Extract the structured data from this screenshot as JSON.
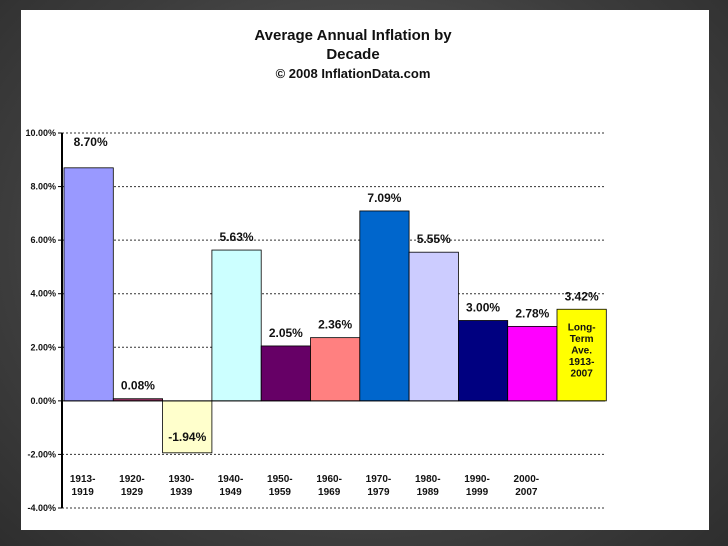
{
  "chart_data": {
    "type": "bar",
    "title": "Average Annual Inflation by Decade",
    "title_lines": [
      "Average Annual Inflation by",
      "Decade"
    ],
    "subtitle": "© 2008 InflationData.com",
    "xlabel": "",
    "ylabel": "",
    "ylim": [
      -4,
      10
    ],
    "y_ticks": [
      10,
      8,
      6,
      4,
      2,
      0,
      -2,
      -4
    ],
    "y_tick_labels": [
      "10.00%",
      "8.00%",
      "6.00%",
      "4.00%",
      "2.00%",
      "0.00%",
      "-2.00%",
      "-4.00%"
    ],
    "grid": true,
    "categories": [
      [
        "1913-",
        "1919"
      ],
      [
        "1920-",
        "1929"
      ],
      [
        "1930-",
        "1939"
      ],
      [
        "1940-",
        "1949"
      ],
      [
        "1950-",
        "1959"
      ],
      [
        "1960-",
        "1969"
      ],
      [
        "1970-",
        "1979"
      ],
      [
        "1980-",
        "1989"
      ],
      [
        "1990-",
        "1999"
      ],
      [
        "2000-",
        "2007"
      ],
      [
        "",
        ""
      ]
    ],
    "values": [
      8.7,
      0.08,
      -1.94,
      5.63,
      2.05,
      2.36,
      7.09,
      5.55,
      3.0,
      2.78,
      3.42
    ],
    "value_labels": [
      "8.70%",
      "0.08%",
      "-1.94%",
      "5.63%",
      "2.05%",
      "2.36%",
      "7.09%",
      "5.55%",
      "3.00%",
      "2.78%",
      "3.42%"
    ],
    "colors": [
      "#9999ff",
      "#993366",
      "#ffffcc",
      "#ccffff",
      "#660066",
      "#ff8080",
      "#0066cc",
      "#ccccff",
      "#000080",
      "#ff00ff",
      "#ffff00"
    ],
    "annotations": [
      {
        "bar_index": 10,
        "lines": [
          "Long-",
          "Term",
          "Ave.",
          "1913-",
          "2007"
        ]
      }
    ]
  }
}
